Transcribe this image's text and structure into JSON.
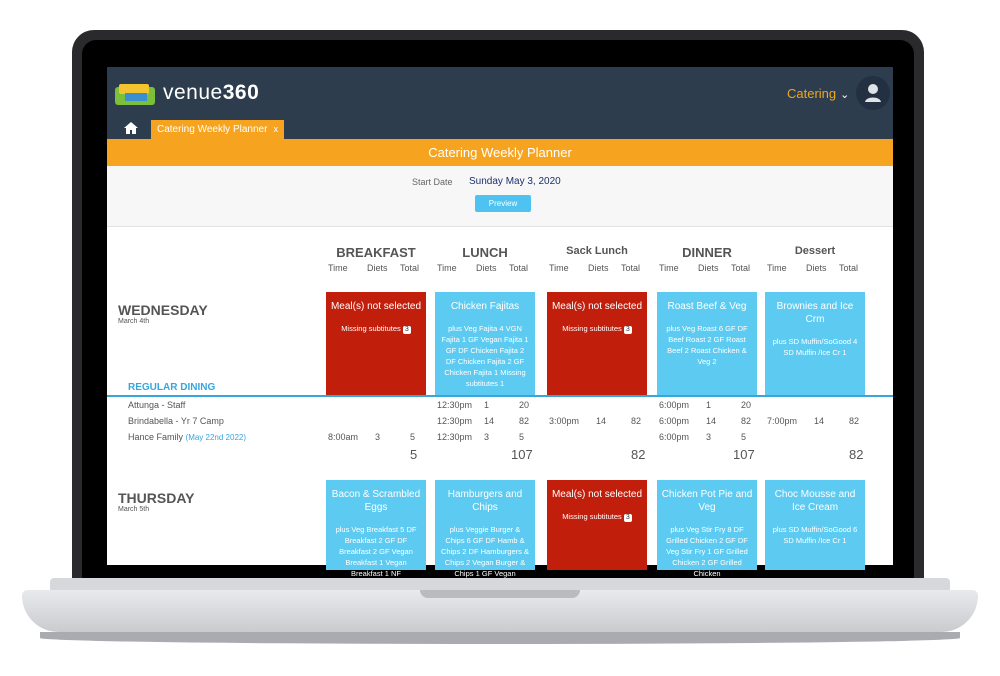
{
  "app": {
    "brand_prefix": "venue",
    "brand_suffix": "360",
    "module": "Catering",
    "tab": "Catering Weekly Planner",
    "tab_close": "x",
    "page_title": "Catering Weekly Planner"
  },
  "filter": {
    "start_label": "Start Date",
    "start_value": "Sunday May 3, 2020",
    "preview": "Preview"
  },
  "meals": [
    "BREAKFAST",
    "LUNCH",
    "Sack Lunch",
    "DINNER",
    "Dessert"
  ],
  "subheaders": {
    "time": "Time",
    "diets": "Diets",
    "total": "Total"
  },
  "days": [
    {
      "name": "WEDNESDAY",
      "date": "March 4th"
    },
    {
      "name": "THURSDAY",
      "date": "March 5th"
    }
  ],
  "wed_cards": [
    {
      "title": "Meal(s) not selected",
      "detail": "Missing subtitutes",
      "badge": "3"
    },
    {
      "title": "Chicken Fajitas",
      "detail": "plus Veg Fajita 4 VGN Fajita 1 GF Vegan Fajita 1 GF DF Chicken Fajita 2 DF Chicken Fajita 2 GF Chicken Fajita 1 Missing subtitutes 1"
    },
    {
      "title": "Meal(s) not selected",
      "detail": "Missing subtitutes",
      "badge": "3"
    },
    {
      "title": "Roast Beef & Veg",
      "detail": "plus Veg Roast 6 GF DF Beef Roast 2 GF Roast Beef 2 Roast Chicken & Veg 2"
    },
    {
      "title": "Brownies and Ice Crm",
      "detail": "plus SD Muffin/SoGood 4 SD Muffin /Ice Cr 1"
    }
  ],
  "thu_cards": [
    {
      "title": "Bacon & Scrambled Eggs",
      "detail": "plus Veg Breakfast 5 DF Breakfast 2 GF DF Breakfast 2 GF Vegan Breakfast 1 Vegan Breakfast 1 NF"
    },
    {
      "title": "Hamburgers and Chips",
      "detail": "plus Veggie Burger & Chips 6 GF DF Hamb & Chips 2 DF Hamburgers & Chips 2 Vegan Burger & Chips 1 GF Vegan"
    },
    {
      "title": "Meal(s) not selected",
      "detail": "Missing subtitutes",
      "badge": "3"
    },
    {
      "title": "Chicken Pot Pie and Veg",
      "detail": "plus Veg Stir Fry 8 DF Grilled Chicken 2 GF DF Veg Stir Fry 1 GF Grilled Chicken 2 GF Grilled Chicken"
    },
    {
      "title": "Choc Mousse and Ice Cream",
      "detail": "plus SD Muffin/SoGood 6 SD Muffin /Ice Cr 1"
    }
  ],
  "section": "REGULAR DINING",
  "groups": [
    {
      "name": "Attunga - Staff",
      "note": "",
      "lunch": [
        "12:30pm",
        "1",
        "20"
      ],
      "dinner": [
        "6:00pm",
        "1",
        "20"
      ]
    },
    {
      "name": "Brindabella - Yr 7 Camp",
      "note": "",
      "lunch": [
        "12:30pm",
        "14",
        "82"
      ],
      "sack": [
        "3:00pm",
        "14",
        "82"
      ],
      "dinner": [
        "6:00pm",
        "14",
        "82"
      ],
      "dessert": [
        "7:00pm",
        "14",
        "82"
      ]
    },
    {
      "name": "Hance Family",
      "note": "(May 22nd 2022)",
      "breakfast": [
        "8:00am",
        "3",
        "5"
      ],
      "lunch": [
        "12:30pm",
        "3",
        "5"
      ],
      "dinner": [
        "6:00pm",
        "3",
        "5"
      ]
    }
  ],
  "totals": [
    "5",
    "107",
    "82",
    "107",
    "82"
  ]
}
